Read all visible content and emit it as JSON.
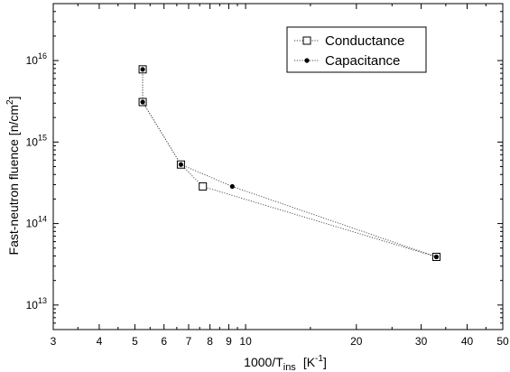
{
  "chart_data": {
    "type": "scatter",
    "x_scale": "log",
    "y_scale": "log",
    "xlim": [
      3,
      50
    ],
    "ylim": [
      5000000000000.0,
      5e+16
    ],
    "x_ticks": [
      3,
      4,
      5,
      6,
      7,
      8,
      9,
      10,
      20,
      30,
      40,
      50
    ],
    "x_tick_labels": [
      "3",
      "4",
      "5",
      "6",
      "7",
      "8",
      "9",
      "10",
      "20",
      "30",
      "40",
      "50"
    ],
    "y_ticks": [
      {
        "value": 10000000000000.0,
        "base": "10",
        "exp": "13"
      },
      {
        "value": 100000000000000.0,
        "base": "10",
        "exp": "14"
      },
      {
        "value": 1000000000000000.0,
        "base": "10",
        "exp": "15"
      },
      {
        "value": 1e+16,
        "base": "10",
        "exp": "16"
      }
    ],
    "xlabel": {
      "main": "1000/T",
      "sub": "ins",
      "pre_sup": "[K",
      "sup": "-1",
      "post_sup": "]"
    },
    "ylabel": {
      "main": "Fast-neutron fluence [n/cm",
      "sup": "2",
      "post": "]"
    },
    "grid": false,
    "legend_position": "top-right",
    "series": [
      {
        "name": "Conductance",
        "marker": "open-square",
        "line": "dotted",
        "x": [
          5.25,
          5.25,
          6.67,
          7.65,
          33.0
        ],
        "y": [
          7800000000000000.0,
          3100000000000000.0,
          530000000000000.0,
          285000000000000.0,
          39000000000000.0
        ]
      },
      {
        "name": "Capacitance",
        "marker": "filled-circle",
        "line": "dotted",
        "x": [
          5.25,
          5.25,
          6.67,
          9.2,
          33.0
        ],
        "y": [
          7800000000000000.0,
          3100000000000000.0,
          530000000000000.0,
          285000000000000.0,
          39000000000000.0
        ]
      }
    ]
  }
}
